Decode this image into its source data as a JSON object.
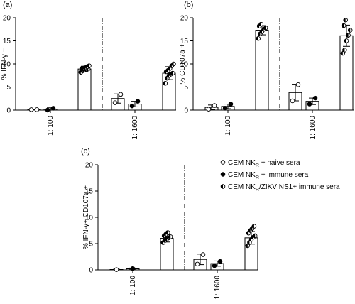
{
  "chart_data": [
    {
      "type": "bar",
      "panel": "(a)",
      "ylabel": "% IFN-γ +",
      "ylim": [
        0,
        20
      ],
      "yticks": [
        0,
        5,
        10,
        15,
        20
      ],
      "groups": [
        "1: 100",
        "1: 1600"
      ],
      "legend": [
        "CEM NKR + naive sera",
        "CEM NKR + immune sera",
        "CEM NKR/ZIKV NS1+ immune sera"
      ],
      "series": [
        {
          "group": "1: 100",
          "mean": 0.1,
          "err": 0.1,
          "points": [
            0.1,
            0.1
          ],
          "marker": "open"
        },
        {
          "group": "1: 100",
          "mean": 0.2,
          "err": 0.3,
          "points": [
            0.0,
            0.4
          ],
          "marker": "filled"
        },
        {
          "group": "1: 100",
          "mean": 8.9,
          "err": 0.6,
          "points": [
            8.2,
            8.5,
            8.7,
            8.8,
            8.9,
            9.0,
            9.1,
            9.2,
            9.4,
            9.6
          ],
          "marker": "half"
        },
        {
          "group": "1: 1600",
          "mean": 2.5,
          "err": 1.0,
          "points": [
            1.6,
            3.4
          ],
          "marker": "open"
        },
        {
          "group": "1: 1600",
          "mean": 1.3,
          "err": 0.6,
          "points": [
            0.9,
            1.9
          ],
          "marker": "filled"
        },
        {
          "group": "1: 1600",
          "mean": 8.0,
          "err": 1.4,
          "points": [
            5.8,
            6.9,
            7.5,
            7.8,
            8.0,
            8.3,
            8.6,
            9.0,
            9.6,
            10.0
          ],
          "marker": "half"
        }
      ]
    },
    {
      "type": "bar",
      "panel": "(b)",
      "ylabel": "% CD107a +",
      "ylim": [
        0,
        20
      ],
      "yticks": [
        0,
        5,
        10,
        15,
        20
      ],
      "groups": [
        "1: 100",
        "1: 1600"
      ],
      "series": [
        {
          "group": "1: 100",
          "mean": 0.6,
          "err": 0.5,
          "points": [
            0.2,
            1.0
          ],
          "marker": "open"
        },
        {
          "group": "1: 100",
          "mean": 0.8,
          "err": 0.5,
          "points": [
            0.4,
            1.3
          ],
          "marker": "filled"
        },
        {
          "group": "1: 100",
          "mean": 17.3,
          "err": 1.0,
          "points": [
            15.5,
            16.5,
            17.0,
            17.5,
            17.8,
            18.2,
            18.6
          ],
          "marker": "half"
        },
        {
          "group": "1: 1600",
          "mean": 3.8,
          "err": 1.8,
          "points": [
            2.0,
            5.5
          ],
          "marker": "open"
        },
        {
          "group": "1: 1600",
          "mean": 1.9,
          "err": 0.7,
          "points": [
            1.3,
            2.6
          ],
          "marker": "filled"
        },
        {
          "group": "1: 1600",
          "mean": 16.1,
          "err": 2.3,
          "points": [
            12.3,
            13.0,
            15.0,
            16.2,
            17.3,
            18.3,
            19.5
          ],
          "marker": "half"
        }
      ]
    },
    {
      "type": "bar",
      "panel": "(c)",
      "ylabel": "% IFN-γ+ CD107a +",
      "ylim": [
        0,
        20
      ],
      "yticks": [
        0,
        5,
        10,
        15,
        20
      ],
      "groups": [
        "1: 100",
        "1: 1600"
      ],
      "series": [
        {
          "group": "1: 100",
          "mean": 0.05,
          "err": 0.05,
          "points": [
            0.05
          ],
          "marker": "open"
        },
        {
          "group": "1: 100",
          "mean": 0.2,
          "err": 0.15,
          "points": [
            0.25
          ],
          "marker": "filled"
        },
        {
          "group": "1: 100",
          "mean": 6.0,
          "err": 0.7,
          "points": [
            5.2,
            5.6,
            5.9,
            6.1,
            6.3,
            6.5,
            6.8,
            7.1
          ],
          "marker": "half"
        },
        {
          "group": "1: 1600",
          "mean": 2.0,
          "err": 1.0,
          "points": [
            1.1,
            2.9
          ],
          "marker": "open"
        },
        {
          "group": "1: 1600",
          "mean": 1.2,
          "err": 0.5,
          "points": [
            0.8,
            1.6
          ],
          "marker": "filled"
        },
        {
          "group": "1: 1600",
          "mean": 6.1,
          "err": 1.2,
          "points": [
            4.6,
            5.2,
            5.8,
            6.2,
            6.5,
            7.0,
            7.5,
            7.9,
            8.3
          ],
          "marker": "half"
        }
      ]
    }
  ],
  "legend": {
    "items": [
      {
        "marker": "open",
        "text": "CEM NK",
        "sub": "R",
        "rest": " + naive sera"
      },
      {
        "marker": "filled",
        "text": "CEM NK",
        "sub": "R",
        "rest": " + immune sera"
      },
      {
        "marker": "half",
        "text": "CEM NK",
        "sub": "R",
        "rest": "/ZIKV NS1+ immune sera"
      }
    ]
  }
}
